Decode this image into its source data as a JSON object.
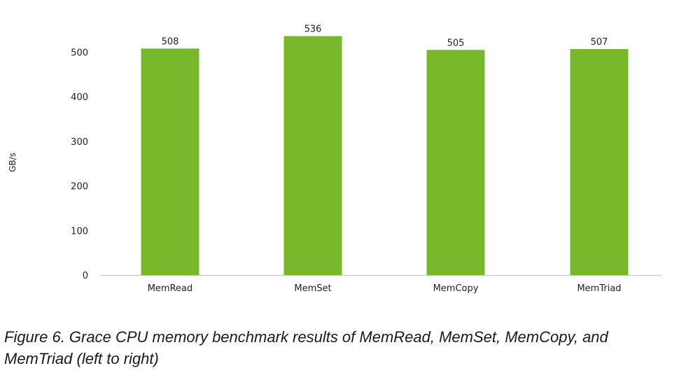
{
  "chart_data": {
    "type": "bar",
    "categories": [
      "MemRead",
      "MemSet",
      "MemCopy",
      "MemTriad"
    ],
    "values": [
      508,
      536,
      505,
      507
    ],
    "data_labels": [
      "508",
      "536",
      "505",
      "507"
    ],
    "title": "",
    "xlabel": "",
    "ylabel": "GB/s",
    "ylim": [
      0,
      550
    ],
    "yticks": [
      0,
      100,
      200,
      300,
      400,
      500
    ],
    "ytick_labels": [
      "0",
      "100",
      "200",
      "300",
      "400",
      "500"
    ],
    "grid": false,
    "legend": "none",
    "bar_color": "#76b82a"
  },
  "caption": "Figure 6. Grace CPU memory benchmark results of MemRead, MemSet, MemCopy, and MemTriad (left to right)"
}
